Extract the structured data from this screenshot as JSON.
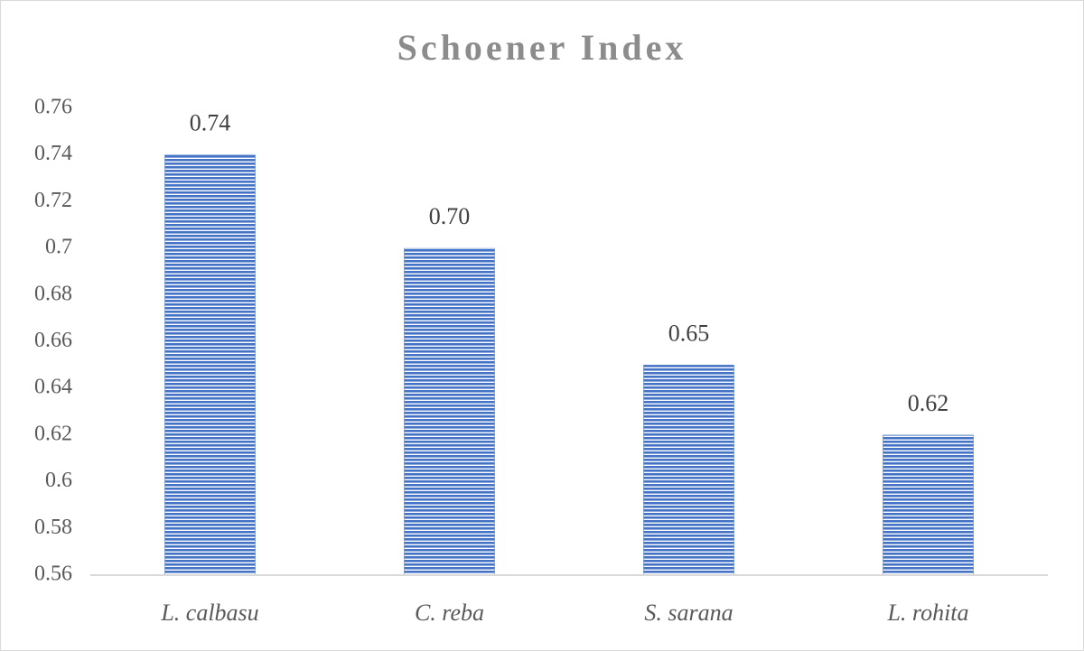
{
  "chart_data": {
    "type": "bar",
    "title": "Schoener Index",
    "categories": [
      "L. calbasu",
      "C. reba",
      "S. sarana",
      "L. rohita"
    ],
    "values": [
      0.74,
      0.7,
      0.65,
      0.62
    ],
    "value_labels": [
      "0.74",
      "0.70",
      "0.65",
      "0.62"
    ],
    "color": "#4472c4",
    "ylim": [
      0.56,
      0.76
    ],
    "yticks": [
      0.56,
      0.58,
      0.6,
      0.62,
      0.64,
      0.66,
      0.68,
      0.7,
      0.72,
      0.74,
      0.76
    ],
    "grid": false
  }
}
